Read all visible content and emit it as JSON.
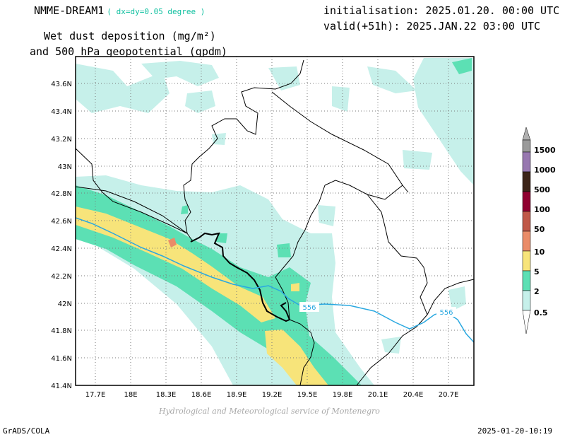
{
  "header": {
    "model": "NMME-DREAM1",
    "resolution": "( dx=dy=0.05 degree )",
    "title_line1": "Wet dust deposition (mg/m²)",
    "title_line2": "and 500 hPa geopotential (gpdm)",
    "initialisation": "initialisation: 2025.01.20. 00:00 UTC",
    "valid": "valid(+51h): 2025.JAN.22 03:00 UTC"
  },
  "map": {
    "lat_ticks": [
      "43.6N",
      "43.4N",
      "43.2N",
      "43N",
      "42.8N",
      "42.6N",
      "42.4N",
      "42.2N",
      "42N",
      "41.8N",
      "41.6N",
      "41.4N"
    ],
    "lon_ticks": [
      "17.7E",
      "18E",
      "18.3E",
      "18.6E",
      "18.9E",
      "19.2E",
      "19.5E",
      "19.8E",
      "20.1E",
      "20.4E",
      "20.7E"
    ],
    "contour_labels": [
      "556",
      "556"
    ],
    "colors": {
      "c0_5": "#c6f0ea",
      "c2": "#5ce0b4",
      "c5": "#f7e47a",
      "c10": "#ea8c68",
      "c50": "#c05848",
      "c100": "#900030",
      "c500": "#502818",
      "c1000": "#401c10",
      "c1500": "#9878b0",
      "geopotential_line": "#2aa8e0",
      "border": "#000000"
    }
  },
  "colorbar": {
    "labels": [
      "1500",
      "1000",
      "500",
      "100",
      "50",
      "10",
      "5",
      "2",
      "0.5"
    ]
  },
  "footer": {
    "credit": "Hydrological and Meteorological service of Montenegro",
    "software": "GrADS/COLA",
    "timestamp": "2025-01-20-10:19"
  }
}
